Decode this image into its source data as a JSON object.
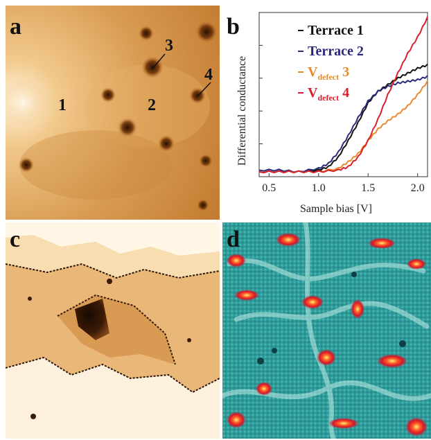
{
  "panels": {
    "a": {
      "letter": "a",
      "site_labels": [
        "1",
        "2",
        "3",
        "4"
      ]
    },
    "b": {
      "letter": "b"
    },
    "c": {
      "letter": "c"
    },
    "d": {
      "letter": "d"
    }
  },
  "chart_data": {
    "type": "line",
    "xlabel": "Sample bias [V]",
    "ylabel": "Differential conductance",
    "xlim": [
      0.4,
      2.1
    ],
    "xticks": [
      "0.5",
      "1.0",
      "1.5",
      "2.0"
    ],
    "xtick_values": [
      0.5,
      1.0,
      1.5,
      2.0
    ],
    "yticks_labeled": false,
    "ylim": [
      0,
      1
    ],
    "legend_position": "top-right",
    "series": [
      {
        "name": "Terrace 1",
        "label_main": "Terrace 1",
        "label_sub": "",
        "color": "#111111",
        "x": [
          0.4,
          0.6,
          0.8,
          1.0,
          1.1,
          1.2,
          1.3,
          1.4,
          1.5,
          1.6,
          1.7,
          1.8,
          1.9,
          2.0,
          2.1
        ],
        "y": [
          0.03,
          0.03,
          0.03,
          0.04,
          0.06,
          0.12,
          0.22,
          0.33,
          0.45,
          0.52,
          0.56,
          0.6,
          0.63,
          0.66,
          0.68
        ]
      },
      {
        "name": "Terrace 2",
        "label_main": "Terrace 2",
        "label_sub": "",
        "color": "#2a2a7a",
        "x": [
          0.4,
          0.6,
          0.8,
          1.0,
          1.1,
          1.2,
          1.3,
          1.4,
          1.5,
          1.6,
          1.7,
          1.8,
          1.9,
          2.0,
          2.1
        ],
        "y": [
          0.04,
          0.04,
          0.03,
          0.05,
          0.08,
          0.15,
          0.25,
          0.36,
          0.46,
          0.52,
          0.55,
          0.57,
          0.58,
          0.59,
          0.61
        ]
      },
      {
        "name": "V defect 3",
        "label_main": "V",
        "label_sub": "defect",
        "label_num": "3",
        "color": "#e8892e",
        "x": [
          0.4,
          0.6,
          0.8,
          1.0,
          1.2,
          1.3,
          1.4,
          1.5,
          1.6,
          1.7,
          1.8,
          1.9,
          2.0,
          2.1
        ],
        "y": [
          0.03,
          0.03,
          0.03,
          0.03,
          0.05,
          0.09,
          0.14,
          0.22,
          0.29,
          0.34,
          0.38,
          0.43,
          0.5,
          0.58
        ]
      },
      {
        "name": "V defect 4",
        "label_main": "V",
        "label_sub": "defect",
        "label_num": "4",
        "color": "#d81f2c",
        "x": [
          0.4,
          0.6,
          0.8,
          1.0,
          1.2,
          1.3,
          1.4,
          1.5,
          1.6,
          1.7,
          1.8,
          1.9,
          2.0,
          2.1
        ],
        "y": [
          0.03,
          0.03,
          0.03,
          0.03,
          0.04,
          0.06,
          0.12,
          0.22,
          0.35,
          0.5,
          0.63,
          0.75,
          0.85,
          0.97
        ]
      }
    ]
  }
}
